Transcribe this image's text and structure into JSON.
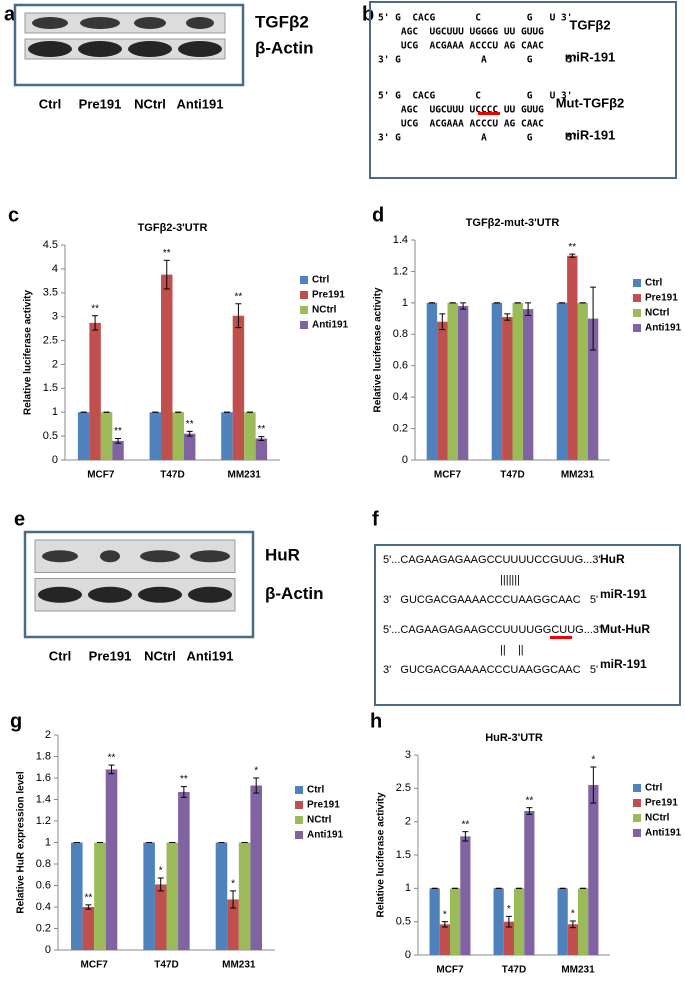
{
  "panel_letters": [
    "a",
    "b",
    "c",
    "d",
    "e",
    "f",
    "g",
    "h"
  ],
  "blot_a": {
    "targets": [
      "TGFβ2",
      "β-Actin"
    ],
    "lanes": [
      "Ctrl",
      "Pre191",
      "NCtrl",
      "Anti191"
    ]
  },
  "sequences_b": {
    "blocks": [
      {
        "lines": [
          "5' G  CACG       C        G   U 3'",
          "    AGC  UGCUUU UGGGG UU GUUG",
          "    UCG  ACGAAA ACCCU AG CAAC",
          "3' G              A       G      5'"
        ],
        "labels": [
          "TGFβ2",
          "miR-191"
        ]
      },
      {
        "lines": [
          "5' G  CACG       C        G   U 3'",
          "    AGC  UGCUUU UCCCC UU GUUG",
          "    UCG  ACGAAA ACCCU AG CAAC",
          "3' G              A       G      5'"
        ],
        "labels": [
          "Mut-TGFβ2",
          "miR-191"
        ]
      }
    ]
  },
  "blot_e": {
    "targets": [
      "HuR",
      "β-Actin"
    ],
    "lanes": [
      "Ctrl",
      "Pre191",
      "NCtrl",
      "Anti191"
    ]
  },
  "sequences_f": {
    "blocks": [
      {
        "lines": [
          "5'...CAGAAGAGAAGCCUUUUCCGUUG...3'",
          "|||||||",
          "3'   GUCGACGAAAACCCUAAGGCAAC   5'"
        ],
        "labels": [
          "HuR",
          "miR-191"
        ]
      },
      {
        "lines": [
          "5'...CAGAAGAGAAGCCUUUUGGCUUG...3'",
          "||    ||",
          "3'   GUCGACGAAAACCCUAAGGCAAC   5'"
        ],
        "labels": [
          "Mut-HuR",
          "miR-191"
        ]
      }
    ]
  },
  "chart_data": [
    {
      "type": "bar",
      "title": "TGFβ2-3'UTR",
      "ylabel": "Relative luciferase activity",
      "categories": [
        "MCF7",
        "T47D",
        "MM231"
      ],
      "ylim": [
        0,
        4.5
      ],
      "yticks": [
        0,
        0.5,
        1,
        1.5,
        2,
        2.5,
        3,
        3.5,
        4,
        4.5
      ],
      "series": [
        {
          "name": "Ctrl",
          "color": "#4f81bd",
          "values": [
            1,
            1,
            1
          ],
          "errors": [
            0,
            0,
            0
          ]
        },
        {
          "name": "Pre191",
          "color": "#c0504d",
          "values": [
            2.87,
            3.88,
            3.02
          ],
          "errors": [
            0.15,
            0.3,
            0.25
          ],
          "annotations": [
            "**",
            "**",
            "**"
          ]
        },
        {
          "name": "NCtrl",
          "color": "#9bbb59",
          "values": [
            1,
            1,
            1
          ],
          "errors": [
            0,
            0,
            0
          ]
        },
        {
          "name": "Anti191",
          "color": "#8064a2",
          "values": [
            0.4,
            0.55,
            0.45
          ],
          "errors": [
            0.05,
            0.05,
            0.04
          ],
          "annotations": [
            "**",
            "**",
            "**"
          ]
        }
      ]
    },
    {
      "type": "bar",
      "title": "TGFβ2-mut-3'UTR",
      "ylabel": "Relative luciferase activity",
      "categories": [
        "MCF7",
        "T47D",
        "MM231"
      ],
      "ylim": [
        0,
        1.4
      ],
      "yticks": [
        0,
        0.2,
        0.4,
        0.6,
        0.8,
        1,
        1.2,
        1.4
      ],
      "series": [
        {
          "name": "Ctrl",
          "color": "#4f81bd",
          "values": [
            1,
            1,
            1
          ],
          "errors": [
            0,
            0,
            0
          ]
        },
        {
          "name": "Pre191",
          "color": "#c0504d",
          "values": [
            0.88,
            0.91,
            1.3
          ],
          "errors": [
            0.05,
            0.02,
            0.01
          ],
          "annotations": [
            null,
            null,
            "**"
          ]
        },
        {
          "name": "NCtrl",
          "color": "#9bbb59",
          "values": [
            1,
            1,
            1
          ],
          "errors": [
            0,
            0,
            0
          ]
        },
        {
          "name": "Anti191",
          "color": "#8064a2",
          "values": [
            0.98,
            0.96,
            0.9
          ],
          "errors": [
            0.02,
            0.04,
            0.2
          ]
        }
      ]
    },
    {
      "type": "bar",
      "ylabel": "Relative HuR expression level",
      "categories": [
        "MCF7",
        "T47D",
        "MM231"
      ],
      "ylim": [
        0,
        2
      ],
      "yticks": [
        0,
        0.2,
        0.4,
        0.6,
        0.8,
        1,
        1.2,
        1.4,
        1.6,
        1.8,
        2
      ],
      "series": [
        {
          "name": "Ctrl",
          "color": "#4f81bd",
          "values": [
            1,
            1,
            1
          ],
          "errors": [
            0,
            0,
            0
          ]
        },
        {
          "name": "Pre191",
          "color": "#c0504d",
          "values": [
            0.4,
            0.61,
            0.47
          ],
          "errors": [
            0.02,
            0.06,
            0.08
          ],
          "annotations": [
            "**",
            "*",
            "*"
          ]
        },
        {
          "name": "NCtrl",
          "color": "#9bbb59",
          "values": [
            1,
            1,
            1
          ],
          "errors": [
            0,
            0,
            0
          ]
        },
        {
          "name": "Anti191",
          "color": "#8064a2",
          "values": [
            1.68,
            1.47,
            1.53
          ],
          "errors": [
            0.04,
            0.05,
            0.07
          ],
          "annotations": [
            "**",
            "**",
            "*"
          ]
        }
      ]
    },
    {
      "type": "bar",
      "title": "HuR-3'UTR",
      "ylabel": "Relative luciferase activity",
      "categories": [
        "MCF7",
        "T47D",
        "MM231"
      ],
      "ylim": [
        0,
        3
      ],
      "yticks": [
        0,
        0.5,
        1,
        1.5,
        2,
        2.5,
        3
      ],
      "series": [
        {
          "name": "Ctrl",
          "color": "#4f81bd",
          "values": [
            1,
            1,
            1
          ],
          "errors": [
            0,
            0,
            0
          ]
        },
        {
          "name": "Pre191",
          "color": "#c0504d",
          "values": [
            0.46,
            0.5,
            0.46
          ],
          "errors": [
            0.04,
            0.08,
            0.05
          ],
          "annotations": [
            "*",
            "*",
            "*"
          ]
        },
        {
          "name": "NCtrl",
          "color": "#9bbb59",
          "values": [
            1,
            1,
            1
          ],
          "errors": [
            0,
            0,
            0
          ]
        },
        {
          "name": "Anti191",
          "color": "#8064a2",
          "values": [
            1.78,
            2.16,
            2.55
          ],
          "errors": [
            0.07,
            0.05,
            0.27
          ],
          "annotations": [
            "**",
            "**",
            "*"
          ]
        }
      ]
    }
  ]
}
